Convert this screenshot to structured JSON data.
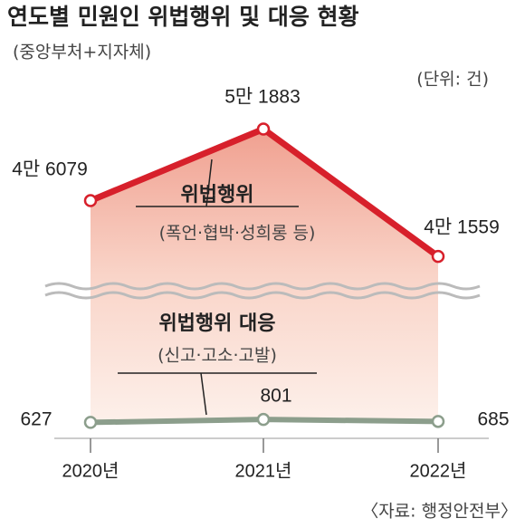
{
  "chart_data": {
    "type": "line",
    "title": "연도별 민원인 위법행위 및 대응 현황",
    "subtitle": "(중앙부처+지자체)",
    "unit": "(단위: 건)",
    "source": "〈자료: 행정안전부〉",
    "categories": [
      "2020년",
      "2021년",
      "2022년"
    ],
    "series": [
      {
        "name": "위법행위",
        "note": "(폭언·협박·성희롱 등)",
        "color": "#d7202b",
        "values": [
          46079,
          51883,
          41559
        ],
        "value_labels": [
          "4만 6079",
          "5만 1883",
          "4만 1559"
        ],
        "ylim": [
          39000,
          55000
        ]
      },
      {
        "name": "위법행위 대응",
        "note": "(신고·고소·고발)",
        "color": "#8c9e8c",
        "values": [
          627,
          801,
          685
        ],
        "value_labels": [
          "627",
          "801",
          "685"
        ],
        "ylim": [
          0,
          8000
        ]
      }
    ]
  }
}
